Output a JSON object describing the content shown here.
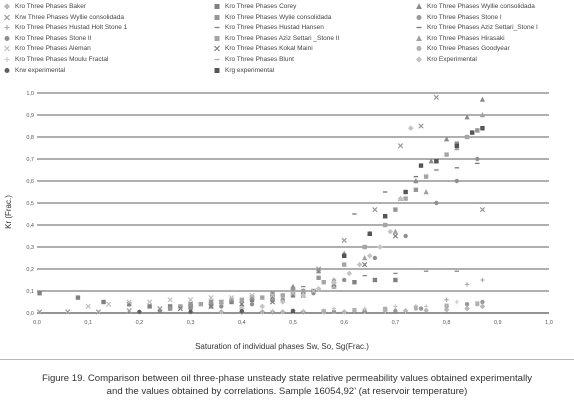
{
  "chart_data": {
    "type": "scatter",
    "title": "",
    "xlabel": "Saturation of individual phases Sw, So, Sg(Frac.)",
    "ylabel": "Kr (Frac.)",
    "xlim": [
      0,
      1
    ],
    "ylim": [
      0,
      1
    ],
    "x_ticks": [
      "0,0",
      "0,1",
      "0,2",
      "0,3",
      "0,4",
      "0,5",
      "0,6",
      "0,7",
      "0,8",
      "0,9",
      "1,0"
    ],
    "y_ticks": [
      "0,0",
      "0,1",
      "0,2",
      "0,3",
      "0,4",
      "0,5",
      "0,6",
      "0,7",
      "0,8",
      "0,9",
      "1,0"
    ],
    "grid": "horizontal",
    "legend_position": "top",
    "series": [
      {
        "name": "Kro Three Phases Baker",
        "marker": "diamond",
        "color": "#b8b8b8",
        "x": [
          0.36,
          0.4,
          0.44,
          0.48,
          0.52,
          0.56,
          0.6,
          0.64,
          0.68,
          0.72,
          0.76,
          0.8,
          0.84,
          0.87
        ],
        "y": [
          0.005,
          0.005,
          0.005,
          0.005,
          0.005,
          0.005,
          0.005,
          0.008,
          0.01,
          0.01,
          0.012,
          0.015,
          0.02,
          0.03
        ]
      },
      {
        "name": "Kro Three Phases Corey",
        "marker": "square",
        "color": "#808080",
        "x": [
          0.005,
          0.08,
          0.13,
          0.18,
          0.22,
          0.26,
          0.3,
          0.34,
          0.38,
          0.42,
          0.46,
          0.5,
          0.54,
          0.58,
          0.62,
          0.66,
          0.7
        ],
        "y": [
          0.09,
          0.07,
          0.05,
          0.04,
          0.03,
          0.03,
          0.03,
          0.04,
          0.05,
          0.06,
          0.07,
          0.08,
          0.1,
          0.12,
          0.14,
          0.15,
          0.15
        ]
      },
      {
        "name": "Kro Three Phases Wyllie consolidada",
        "marker": "triangle",
        "color": "#8a8a8a",
        "x": [
          0.3,
          0.34,
          0.38,
          0.42,
          0.46,
          0.5,
          0.55,
          0.6,
          0.65,
          0.68,
          0.71,
          0.74,
          0.77,
          0.8,
          0.84,
          0.87
        ],
        "y": [
          0.04,
          0.05,
          0.06,
          0.07,
          0.09,
          0.12,
          0.19,
          0.27,
          0.36,
          0.44,
          0.52,
          0.6,
          0.69,
          0.79,
          0.89,
          0.97
        ]
      },
      {
        "name": "Krw Three Phases Wyllie consolidada",
        "marker": "x",
        "color": "#999999",
        "x": [
          0.005,
          0.06,
          0.12,
          0.18,
          0.24,
          0.3,
          0.36,
          0.42,
          0.5,
          0.55,
          0.6,
          0.66,
          0.71,
          0.75,
          0.78,
          0.87
        ],
        "y": [
          0.005,
          0.005,
          0.005,
          0.01,
          0.02,
          0.03,
          0.05,
          0.07,
          0.1,
          0.2,
          0.33,
          0.47,
          0.76,
          0.85,
          0.98,
          0.47
        ]
      },
      {
        "name": "Kro Three Phases Wylie consolidada",
        "marker": "square",
        "color": "#969696",
        "x": [
          0.26,
          0.3,
          0.34,
          0.38,
          0.42,
          0.46,
          0.5,
          0.55,
          0.6,
          0.65,
          0.7,
          0.74,
          0.78,
          0.82,
          0.86
        ],
        "y": [
          0.02,
          0.04,
          0.05,
          0.06,
          0.07,
          0.09,
          0.11,
          0.16,
          0.26,
          0.36,
          0.47,
          0.56,
          0.69,
          0.77,
          0.83
        ]
      },
      {
        "name": "Kro Three Phases Stone I",
        "marker": "circle",
        "color": "#9a9a9a",
        "x": [
          0.4,
          0.46,
          0.52,
          0.58,
          0.64,
          0.7,
          0.75,
          0.8,
          0.84,
          0.87
        ],
        "y": [
          0.003,
          0.004,
          0.005,
          0.006,
          0.008,
          0.01,
          0.02,
          0.03,
          0.04,
          0.05
        ]
      },
      {
        "name": "Kro Three Phases Hustad Holt Stone 1",
        "marker": "plus",
        "color": "#aaaaaa",
        "x": [
          0.44,
          0.5,
          0.56,
          0.62,
          0.68,
          0.74,
          0.8,
          0.84,
          0.87
        ],
        "y": [
          0.005,
          0.005,
          0.01,
          0.01,
          0.02,
          0.03,
          0.06,
          0.13,
          0.15
        ]
      },
      {
        "name": "Kro Three Phases Hustad Hansen",
        "marker": "dash",
        "color": "#888888",
        "x": [
          0.52,
          0.58,
          0.64,
          0.7,
          0.76,
          0.82
        ],
        "y": [
          0.12,
          0.15,
          0.17,
          0.18,
          0.19,
          0.19
        ]
      },
      {
        "name": "Kro Three Phases Aziz Settari_Stone I",
        "marker": "dash",
        "color": "#777777",
        "x": [
          0.62,
          0.68,
          0.74,
          0.78,
          0.82,
          0.86
        ],
        "y": [
          0.45,
          0.55,
          0.62,
          0.65,
          0.66,
          0.68
        ]
      },
      {
        "name": "Kro Three Phases Stone II",
        "marker": "circle",
        "color": "#8f8f8f",
        "x": [
          0.24,
          0.3,
          0.36,
          0.42,
          0.48,
          0.54,
          0.6,
          0.66,
          0.72,
          0.78,
          0.82,
          0.86
        ],
        "y": [
          0.01,
          0.02,
          0.03,
          0.04,
          0.06,
          0.09,
          0.15,
          0.25,
          0.35,
          0.5,
          0.6,
          0.7
        ]
      },
      {
        "name": "Kro Three Phases Aziz Settari _Stone II",
        "marker": "square",
        "color": "#a5a5a5",
        "x": [
          0.28,
          0.32,
          0.36,
          0.4,
          0.44,
          0.48,
          0.52,
          0.56,
          0.6,
          0.64,
          0.68,
          0.72,
          0.76,
          0.8,
          0.84
        ],
        "y": [
          0.03,
          0.04,
          0.05,
          0.06,
          0.07,
          0.08,
          0.1,
          0.14,
          0.22,
          0.3,
          0.4,
          0.52,
          0.62,
          0.72,
          0.8
        ]
      },
      {
        "name": "Kro Three Phases Hirasaki",
        "marker": "triangle",
        "color": "#a0a0a0",
        "x": [
          0.34,
          0.4,
          0.46,
          0.52,
          0.58,
          0.64,
          0.7,
          0.76,
          0.82,
          0.87
        ],
        "y": [
          0.03,
          0.04,
          0.06,
          0.1,
          0.15,
          0.25,
          0.37,
          0.55,
          0.75,
          0.9
        ]
      },
      {
        "name": "Kro Three Phases Aleman",
        "marker": "x",
        "color": "#bfbfbf",
        "x": [
          0.1,
          0.14,
          0.18,
          0.22,
          0.26,
          0.3,
          0.34,
          0.38,
          0.42,
          0.46,
          0.5,
          0.54,
          0.58
        ],
        "y": [
          0.03,
          0.04,
          0.05,
          0.05,
          0.06,
          0.06,
          0.07,
          0.07,
          0.08,
          0.08,
          0.09,
          0.1,
          0.12
        ]
      },
      {
        "name": "Kro Three Phases Kokal Maini",
        "marker": "x",
        "color": "#7f7f7f",
        "x": [
          0.28,
          0.34,
          0.4,
          0.46,
          0.52,
          0.58,
          0.64,
          0.7
        ],
        "y": [
          0.02,
          0.03,
          0.04,
          0.05,
          0.08,
          0.13,
          0.22,
          0.35
        ]
      },
      {
        "name": "Kro Three Phases Goodyear",
        "marker": "circle",
        "color": "#b0b0b0",
        "x": [
          0.56,
          0.62,
          0.68,
          0.74,
          0.8,
          0.86
        ],
        "y": [
          0.005,
          0.01,
          0.015,
          0.02,
          0.03,
          0.04
        ]
      },
      {
        "name": "Kro Three Phases Moulu Fractal",
        "marker": "plus",
        "color": "#c8c8c8",
        "x": [
          0.46,
          0.52,
          0.58,
          0.64,
          0.7,
          0.76,
          0.82
        ],
        "y": [
          0.01,
          0.01,
          0.02,
          0.02,
          0.03,
          0.03,
          0.05
        ]
      },
      {
        "name": "Kro Three Phases Blunt",
        "marker": "dash",
        "color": "#b3b3b3",
        "x": [
          0.5,
          0.56,
          0.62,
          0.68,
          0.74,
          0.8,
          0.86
        ],
        "y": [
          0.01,
          0.015,
          0.02,
          0.025,
          0.03,
          0.04,
          0.05
        ]
      },
      {
        "name": "Kro Experimental",
        "marker": "diamond",
        "color": "#c4c4c4",
        "x": [
          0.4,
          0.44,
          0.48,
          0.52,
          0.55,
          0.58,
          0.61,
          0.63,
          0.65,
          0.67,
          0.69,
          0.71,
          0.73
        ],
        "y": [
          0.02,
          0.03,
          0.05,
          0.08,
          0.11,
          0.14,
          0.18,
          0.22,
          0.26,
          0.3,
          0.37,
          0.52,
          0.84
        ]
      },
      {
        "name": "Krw experimental",
        "marker": "circle",
        "color": "#606060",
        "x": [
          0.2,
          0.3,
          0.4,
          0.5
        ],
        "y": [
          0.005,
          0.005,
          0.008,
          0.01
        ]
      },
      {
        "name": "Krg experimental",
        "marker": "square",
        "color": "#555555",
        "x": [
          0.6,
          0.65,
          0.68,
          0.72,
          0.75,
          0.78,
          0.82,
          0.85,
          0.87
        ],
        "y": [
          0.26,
          0.36,
          0.44,
          0.55,
          0.67,
          0.69,
          0.76,
          0.82,
          0.84
        ]
      }
    ]
  },
  "caption": {
    "line1": "Figure 19. Comparison between oil three-phase unsteady state relative permeability values obtained experimentally",
    "line2": "and the values obtained by correlations. Sample 16054,92’ (at reservoir temperature)"
  }
}
